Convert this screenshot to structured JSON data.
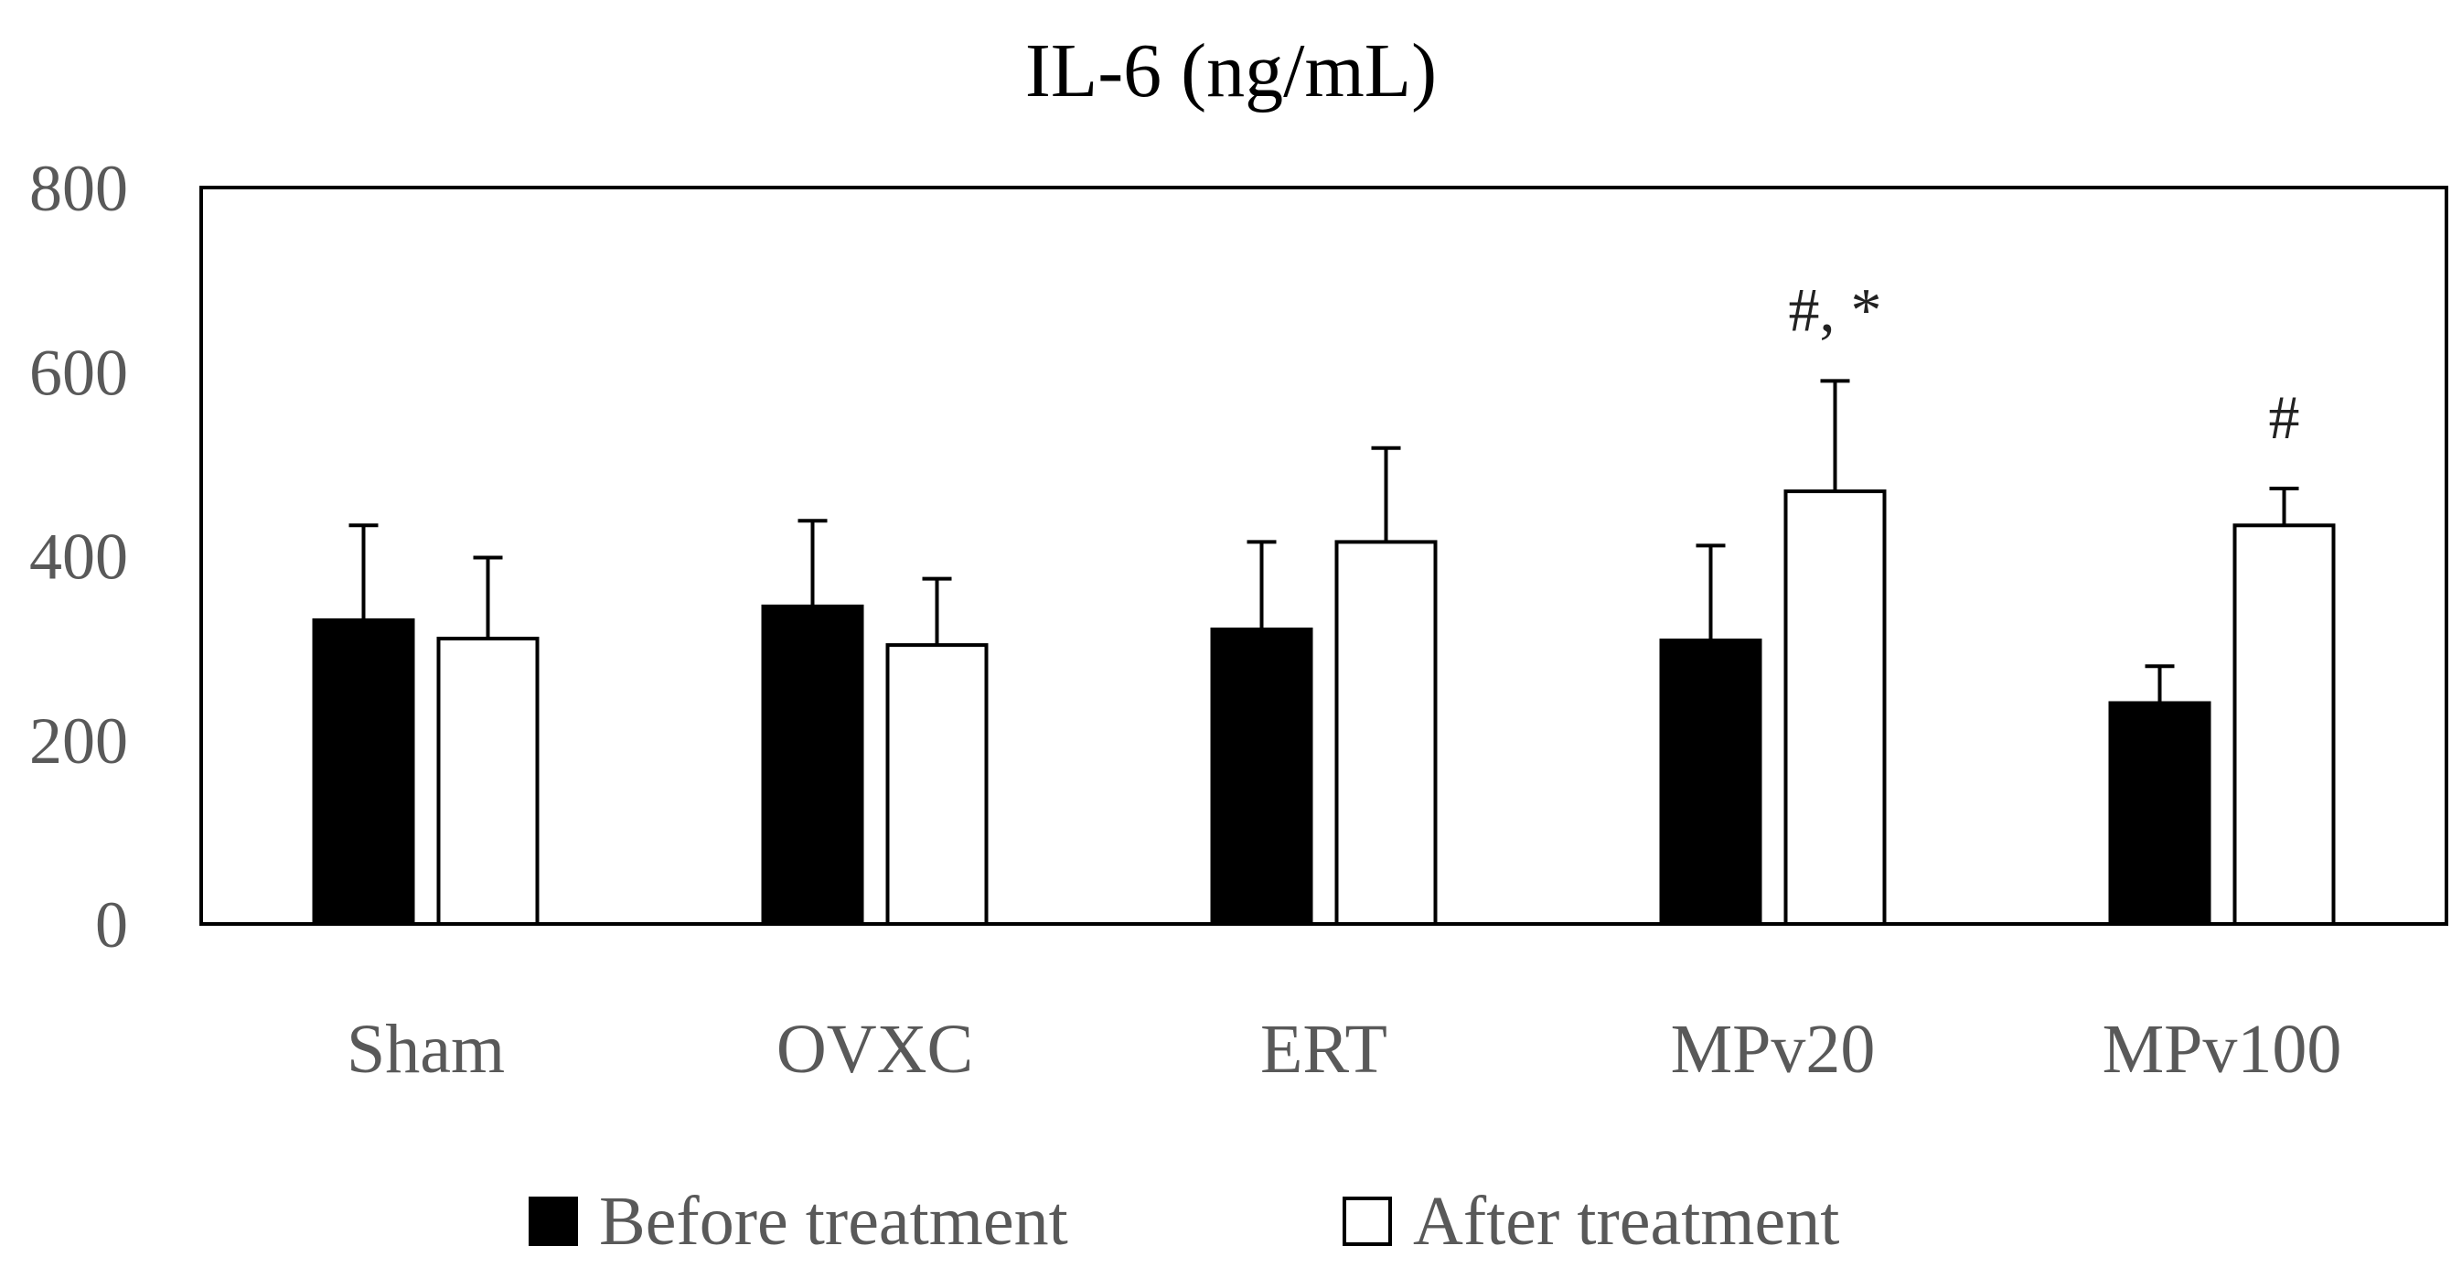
{
  "chart_data": {
    "type": "bar",
    "title": "IL-6 (ng/mL)",
    "xlabel": "",
    "ylabel": "",
    "ylim": [
      0,
      800
    ],
    "yticks": [
      "0",
      "200",
      "400",
      "600",
      "800"
    ],
    "grid": false,
    "categories": [
      "Sham",
      "OVXC",
      "ERT",
      "MPv20",
      "MPv100"
    ],
    "series": [
      {
        "name": "Before treatment",
        "color": "#000000",
        "values": [
          330,
          345,
          320,
          308,
          240
        ],
        "errors": [
          103,
          93,
          95,
          103,
          40
        ]
      },
      {
        "name": "After treatment",
        "color": "#ffffff",
        "values": [
          310,
          303,
          415,
          470,
          433
        ],
        "errors": [
          88,
          72,
          102,
          120,
          40
        ]
      }
    ],
    "annotations": [
      {
        "category": "MPv20",
        "series": "After treatment",
        "text": "#, *"
      },
      {
        "category": "MPv100",
        "series": "After treatment",
        "text": "#"
      }
    ],
    "legend": {
      "position": "bottom"
    }
  }
}
